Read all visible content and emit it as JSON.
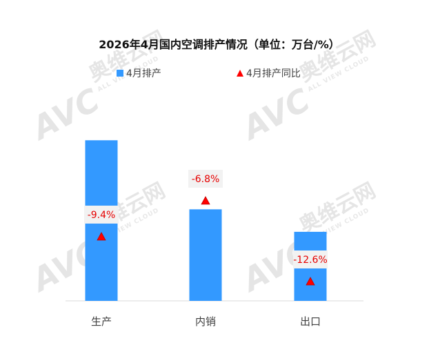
{
  "chart_data": {
    "type": "bar",
    "title": "2026年4月国内空调排产情况（单位：万台/%）",
    "categories": [
      "生产",
      "内销",
      "出口"
    ],
    "series": [
      {
        "name": "4月排产",
        "kind": "bar",
        "values": [
          1,
          0.57,
          0.43
        ]
      },
      {
        "name": "4月排产同比",
        "kind": "marker",
        "values": [
          -9.4,
          -6.8,
          -12.6
        ],
        "labels": [
          "-9.4%",
          "-6.8%",
          "-12.6%"
        ]
      }
    ],
    "ylim": [
      0,
      1.1
    ],
    "grid": false,
    "legend_position": "top",
    "colors": {
      "bar": "#3399ff",
      "marker": "#ff0000",
      "marker_edge": "#c00000",
      "label_text": "#e60000",
      "label_bg": "#f2f2f2"
    }
  },
  "watermark": {
    "logo_text": "AVC",
    "brand_text": "奥维云网",
    "sub_text": "ALL VIEW CLOUD"
  }
}
